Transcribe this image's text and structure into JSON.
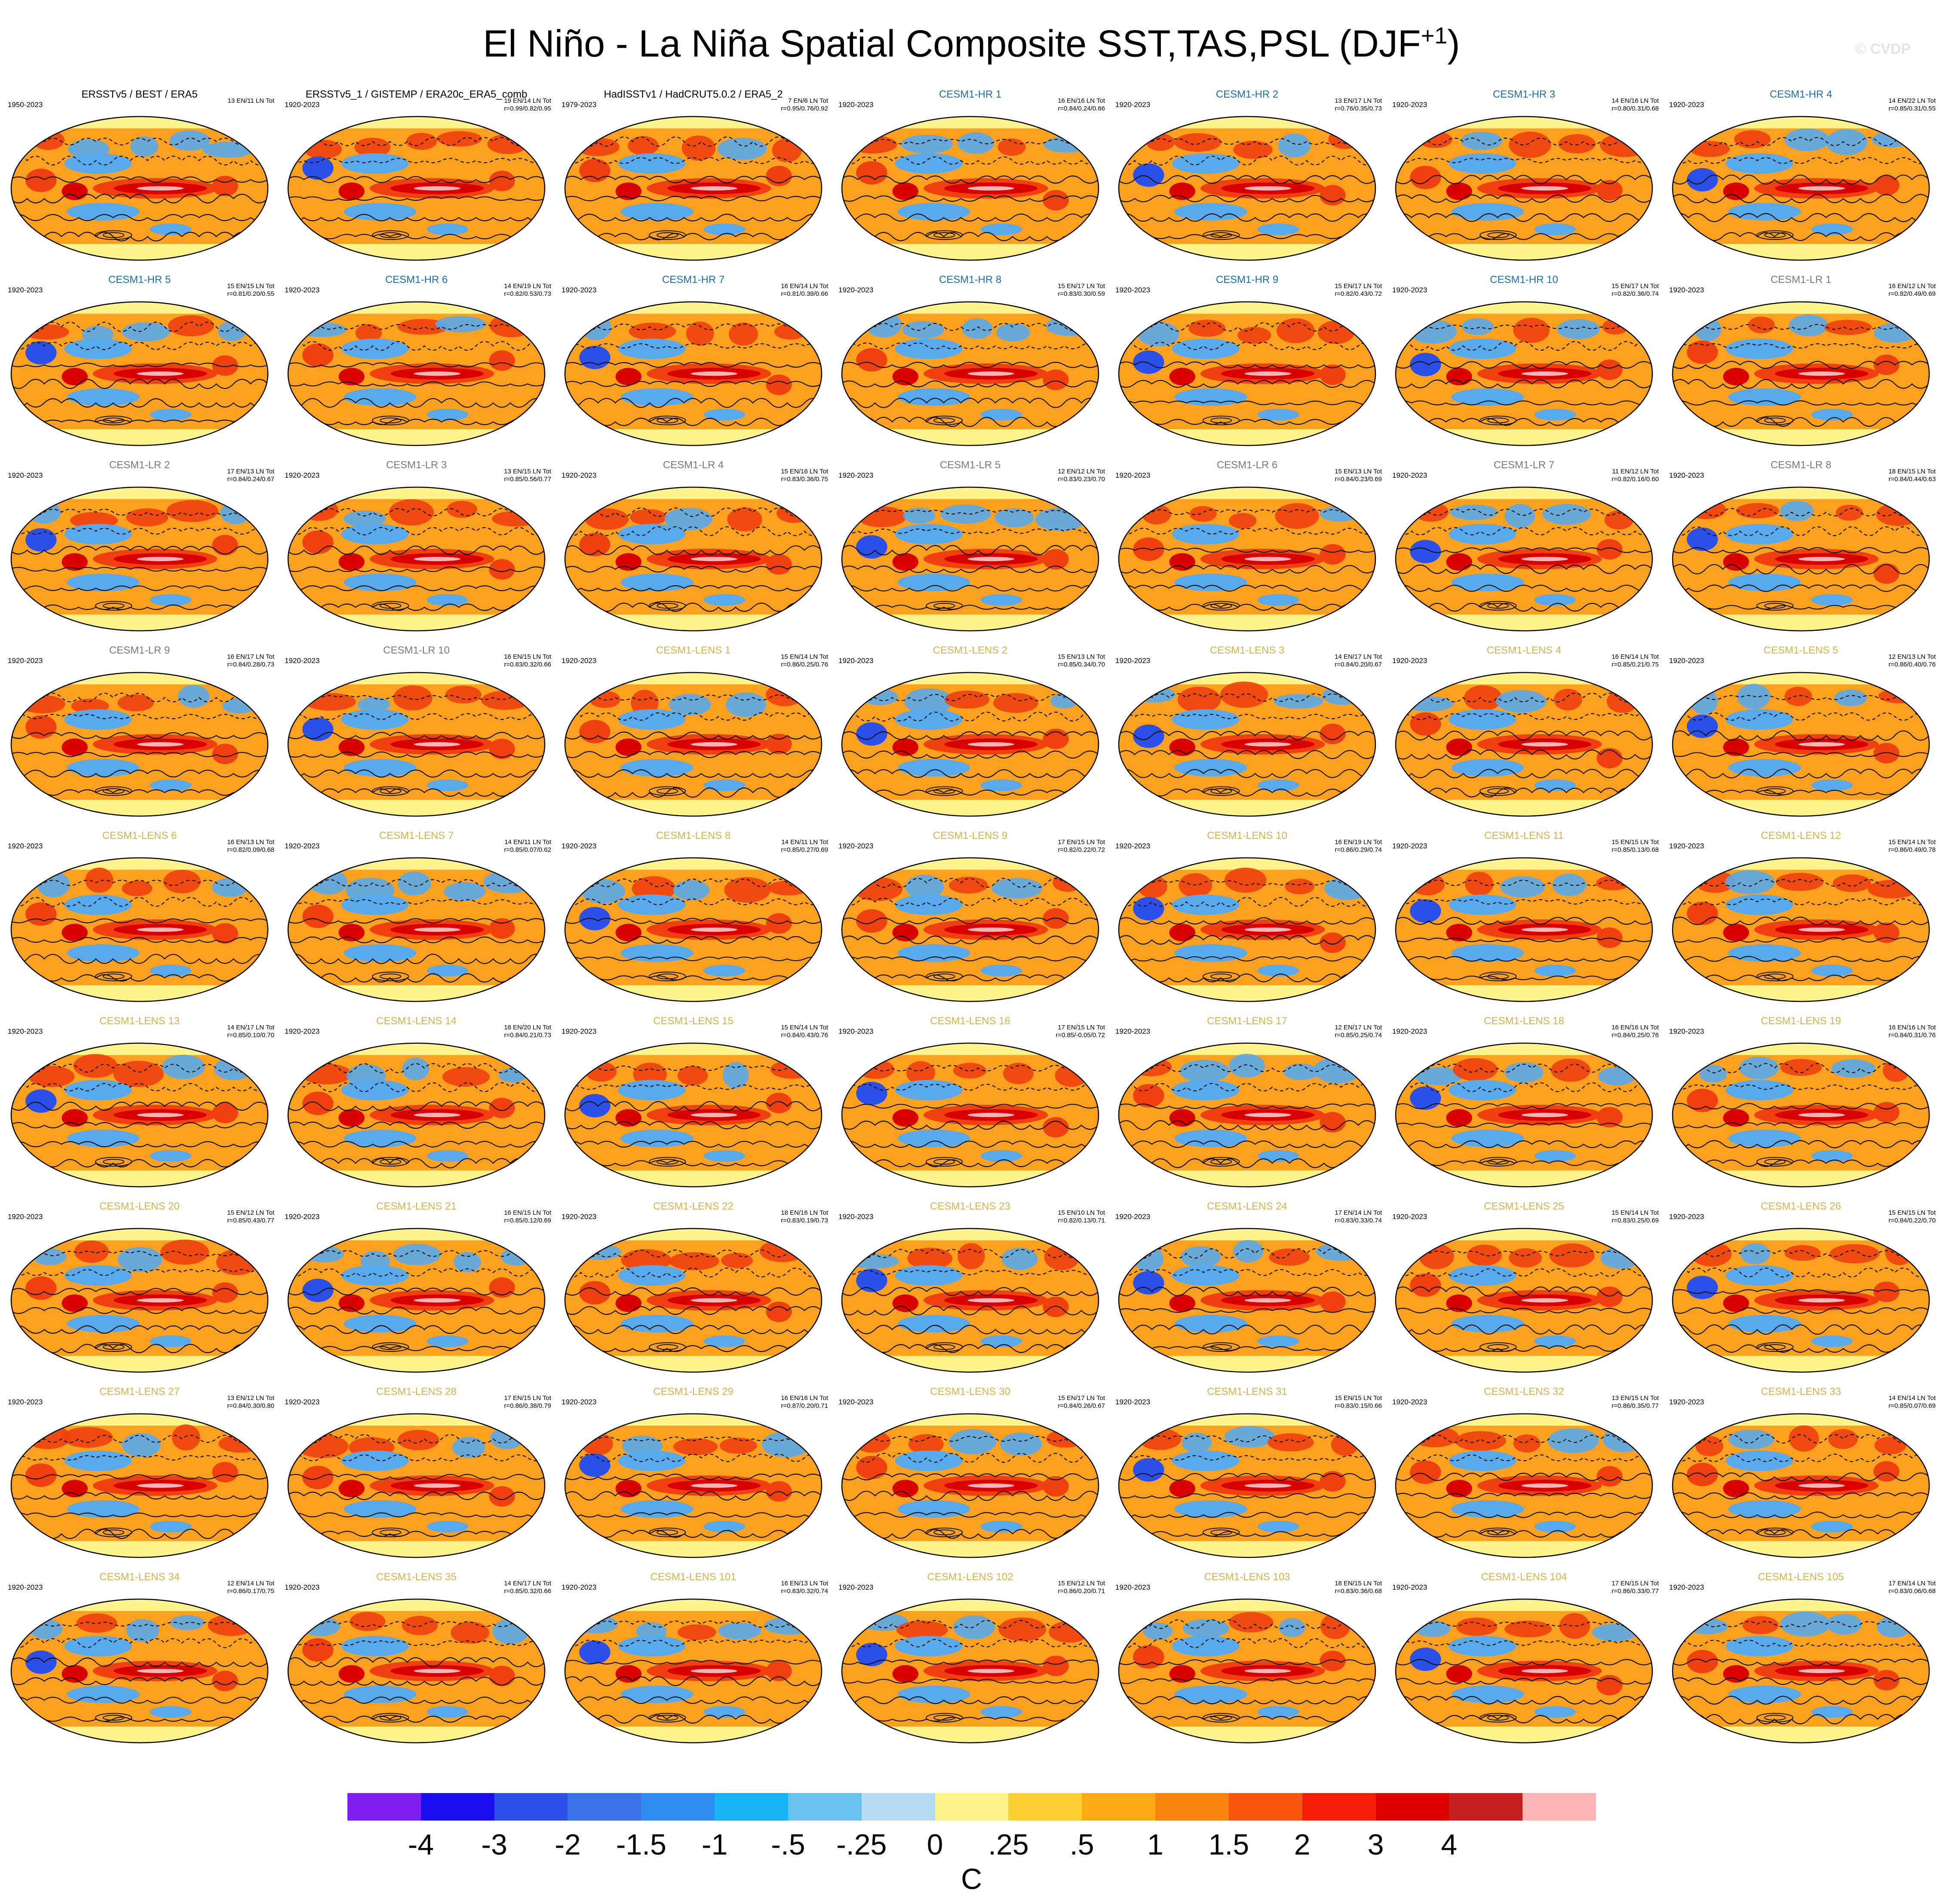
{
  "figure": {
    "title": "El Niño - La Niña Spatial Composite SST,TAS,PSL (DJF",
    "title_superscript": "+1",
    "title_close": ")",
    "watermark": "© CVDP"
  },
  "panels": [
    {
      "title": "ERSSTv5 / BEST / ERA5",
      "years": "1950-2023",
      "stat1": "13 EN/11 LN Tot",
      "stat2": "",
      "group": "obs"
    },
    {
      "title": "ERSSTv5_1 / GISTEMP / ERA20c_ERA5_comb",
      "years": "1920-2023",
      "stat1": "19 EN/14 LN Tot",
      "stat2": "r=0.99/0.82/0.95",
      "group": "obs"
    },
    {
      "title": "HadISSTv1 / HadCRUT5.0.2 / ERA5_2",
      "years": "1979-2023",
      "stat1": "7 EN/6 LN Tot",
      "stat2": "r=0.95/0.76/0.92",
      "group": "obs"
    },
    {
      "title": "CESM1-HR 1",
      "years": "1920-2023",
      "stat1": "16 EN/16 LN Tot",
      "stat2": "r=0.84/0.24/0.66",
      "group": "hr"
    },
    {
      "title": "CESM1-HR 2",
      "years": "1920-2023",
      "stat1": "13 EN/17 LN Tot",
      "stat2": "r=0.76/0.35/0.73",
      "group": "hr"
    },
    {
      "title": "CESM1-HR 3",
      "years": "1920-2023",
      "stat1": "14 EN/16 LN Tot",
      "stat2": "r=0.80/0.31/0.68",
      "group": "hr"
    },
    {
      "title": "CESM1-HR 4",
      "years": "1920-2023",
      "stat1": "14 EN/22 LN Tot",
      "stat2": "r=0.85/0.31/0.55",
      "group": "hr"
    },
    {
      "title": "CESM1-HR 5",
      "years": "1920-2023",
      "stat1": "15 EN/15 LN Tot",
      "stat2": "r=0.81/0.20/0.55",
      "group": "hr"
    },
    {
      "title": "CESM1-HR 6",
      "years": "1920-2023",
      "stat1": "14 EN/19 LN Tot",
      "stat2": "r=0.82/0.53/0.73",
      "group": "hr"
    },
    {
      "title": "CESM1-HR 7",
      "years": "1920-2023",
      "stat1": "16 EN/14 LN Tot",
      "stat2": "r=0.81/0.39/0.66",
      "group": "hr"
    },
    {
      "title": "CESM1-HR 8",
      "years": "1920-2023",
      "stat1": "15 EN/17 LN Tot",
      "stat2": "r=0.83/0.30/0.59",
      "group": "hr"
    },
    {
      "title": "CESM1-HR 9",
      "years": "1920-2023",
      "stat1": "15 EN/17 LN Tot",
      "stat2": "r=0.82/0.43/0.72",
      "group": "hr"
    },
    {
      "title": "CESM1-HR 10",
      "years": "1920-2023",
      "stat1": "15 EN/17 LN Tot",
      "stat2": "r=0.82/0.36/0.74",
      "group": "hr"
    },
    {
      "title": "CESM1-LR 1",
      "years": "1920-2023",
      "stat1": "16 EN/12 LN Tot",
      "stat2": "r=0.82/0.49/0.69",
      "group": "lr"
    },
    {
      "title": "CESM1-LR 2",
      "years": "1920-2023",
      "stat1": "17 EN/13 LN Tot",
      "stat2": "r=0.84/0.24/0.67",
      "group": "lr"
    },
    {
      "title": "CESM1-LR 3",
      "years": "1920-2023",
      "stat1": "13 EN/15 LN Tot",
      "stat2": "r=0.85/0.56/0.77",
      "group": "lr"
    },
    {
      "title": "CESM1-LR 4",
      "years": "1920-2023",
      "stat1": "15 EN/16 LN Tot",
      "stat2": "r=0.83/0.36/0.75",
      "group": "lr"
    },
    {
      "title": "CESM1-LR 5",
      "years": "1920-2023",
      "stat1": "12 EN/12 LN Tot",
      "stat2": "r=0.83/0.23/0.70",
      "group": "lr"
    },
    {
      "title": "CESM1-LR 6",
      "years": "1920-2023",
      "stat1": "15 EN/13 LN Tot",
      "stat2": "r=0.84/0.23/0.69",
      "group": "lr"
    },
    {
      "title": "CESM1-LR 7",
      "years": "1920-2023",
      "stat1": "11 EN/12 LN Tot",
      "stat2": "r=0.82/0.16/0.60",
      "group": "lr"
    },
    {
      "title": "CESM1-LR 8",
      "years": "1920-2023",
      "stat1": "18 EN/15 LN Tot",
      "stat2": "r=0.84/0.44/0.63",
      "group": "lr"
    },
    {
      "title": "CESM1-LR 9",
      "years": "1920-2023",
      "stat1": "16 EN/17 LN Tot",
      "stat2": "r=0.84/0.28/0.73",
      "group": "lr"
    },
    {
      "title": "CESM1-LR 10",
      "years": "1920-2023",
      "stat1": "16 EN/15 LN Tot",
      "stat2": "r=0.83/0.32/0.66",
      "group": "lr"
    },
    {
      "title": "CESM1-LENS 1",
      "years": "1920-2023",
      "stat1": "15 EN/14 LN Tot",
      "stat2": "r=0.86/0.25/0.76",
      "group": "lens"
    },
    {
      "title": "CESM1-LENS 2",
      "years": "1920-2023",
      "stat1": "15 EN/13 LN Tot",
      "stat2": "r=0.85/0.34/0.70",
      "group": "lens"
    },
    {
      "title": "CESM1-LENS 3",
      "years": "1920-2023",
      "stat1": "14 EN/17 LN Tot",
      "stat2": "r=0.84/0.20/0.67",
      "group": "lens"
    },
    {
      "title": "CESM1-LENS 4",
      "years": "1920-2023",
      "stat1": "16 EN/14 LN Tot",
      "stat2": "r=0.85/0.21/0.75",
      "group": "lens"
    },
    {
      "title": "CESM1-LENS 5",
      "years": "1920-2023",
      "stat1": "12 EN/13 LN Tot",
      "stat2": "r=0.86/0.40/0.76",
      "group": "lens"
    },
    {
      "title": "CESM1-LENS 6",
      "years": "1920-2023",
      "stat1": "16 EN/13 LN Tot",
      "stat2": "r=0.82/0.09/0.68",
      "group": "lens"
    },
    {
      "title": "CESM1-LENS 7",
      "years": "1920-2023",
      "stat1": "14 EN/11 LN Tot",
      "stat2": "r=0.85/0.07/0.62",
      "group": "lens"
    },
    {
      "title": "CESM1-LENS 8",
      "years": "1920-2023",
      "stat1": "14 EN/11 LN Tot",
      "stat2": "r=0.85/0.27/0.69",
      "group": "lens"
    },
    {
      "title": "CESM1-LENS 9",
      "years": "1920-2023",
      "stat1": "17 EN/15 LN Tot",
      "stat2": "r=0.82/0.22/0.72",
      "group": "lens"
    },
    {
      "title": "CESM1-LENS 10",
      "years": "1920-2023",
      "stat1": "16 EN/19 LN Tot",
      "stat2": "r=0.86/0.29/0.74",
      "group": "lens"
    },
    {
      "title": "CESM1-LENS 11",
      "years": "1920-2023",
      "stat1": "15 EN/15 LN Tot",
      "stat2": "r=0.85/0.13/0.68",
      "group": "lens"
    },
    {
      "title": "CESM1-LENS 12",
      "years": "1920-2023",
      "stat1": "15 EN/14 LN Tot",
      "stat2": "r=0.86/0.49/0.78",
      "group": "lens"
    },
    {
      "title": "CESM1-LENS 13",
      "years": "1920-2023",
      "stat1": "14 EN/17 LN Tot",
      "stat2": "r=0.85/0.10/0.70",
      "group": "lens"
    },
    {
      "title": "CESM1-LENS 14",
      "years": "1920-2023",
      "stat1": "18 EN/20 LN Tot",
      "stat2": "r=0.84/0.21/0.73",
      "group": "lens"
    },
    {
      "title": "CESM1-LENS 15",
      "years": "1920-2023",
      "stat1": "15 EN/14 LN Tot",
      "stat2": "r=0.84/0.43/0.76",
      "group": "lens"
    },
    {
      "title": "CESM1-LENS 16",
      "years": "1920-2023",
      "stat1": "17 EN/15 LN Tot",
      "stat2": "r=0.85/-0.05/0.72",
      "group": "lens"
    },
    {
      "title": "CESM1-LENS 17",
      "years": "1920-2023",
      "stat1": "12 EN/17 LN Tot",
      "stat2": "r=0.85/0.25/0.74",
      "group": "lens"
    },
    {
      "title": "CESM1-LENS 18",
      "years": "1920-2023",
      "stat1": "16 EN/16 LN Tot",
      "stat2": "r=0.84/0.25/0.76",
      "group": "lens"
    },
    {
      "title": "CESM1-LENS 19",
      "years": "1920-2023",
      "stat1": "16 EN/16 LN Tot",
      "stat2": "r=0.84/0.31/0.76",
      "group": "lens"
    },
    {
      "title": "CESM1-LENS 20",
      "years": "1920-2023",
      "stat1": "15 EN/12 LN Tot",
      "stat2": "r=0.85/0.43/0.77",
      "group": "lens"
    },
    {
      "title": "CESM1-LENS 21",
      "years": "1920-2023",
      "stat1": "16 EN/15 LN Tot",
      "stat2": "r=0.85/0.12/0.69",
      "group": "lens"
    },
    {
      "title": "CESM1-LENS 22",
      "years": "1920-2023",
      "stat1": "18 EN/16 LN Tot",
      "stat2": "r=0.83/0.19/0.73",
      "group": "lens"
    },
    {
      "title": "CESM1-LENS 23",
      "years": "1920-2023",
      "stat1": "15 EN/10 LN Tot",
      "stat2": "r=0.82/0.13/0.71",
      "group": "lens"
    },
    {
      "title": "CESM1-LENS 24",
      "years": "1920-2023",
      "stat1": "17 EN/14 LN Tot",
      "stat2": "r=0.83/0.33/0.74",
      "group": "lens"
    },
    {
      "title": "CESM1-LENS 25",
      "years": "1920-2023",
      "stat1": "15 EN/14 LN Tot",
      "stat2": "r=0.83/0.25/0.69",
      "group": "lens"
    },
    {
      "title": "CESM1-LENS 26",
      "years": "1920-2023",
      "stat1": "15 EN/15 LN Tot",
      "stat2": "r=0.84/0.22/0.70",
      "group": "lens"
    },
    {
      "title": "CESM1-LENS 27",
      "years": "1920-2023",
      "stat1": "13 EN/12 LN Tot",
      "stat2": "r=0.84/0.30/0.80",
      "group": "lens"
    },
    {
      "title": "CESM1-LENS 28",
      "years": "1920-2023",
      "stat1": "17 EN/15 LN Tot",
      "stat2": "r=0.86/0.38/0.79",
      "group": "lens"
    },
    {
      "title": "CESM1-LENS 29",
      "years": "1920-2023",
      "stat1": "16 EN/16 LN Tot",
      "stat2": "r=0.87/0.20/0.71",
      "group": "lens"
    },
    {
      "title": "CESM1-LENS 30",
      "years": "1920-2023",
      "stat1": "15 EN/17 LN Tot",
      "stat2": "r=0.84/0.26/0.67",
      "group": "lens"
    },
    {
      "title": "CESM1-LENS 31",
      "years": "1920-2023",
      "stat1": "15 EN/15 LN Tot",
      "stat2": "r=0.83/0.15/0.66",
      "group": "lens"
    },
    {
      "title": "CESM1-LENS 32",
      "years": "1920-2023",
      "stat1": "13 EN/15 LN Tot",
      "stat2": "r=0.86/0.35/0.77",
      "group": "lens"
    },
    {
      "title": "CESM1-LENS 33",
      "years": "1920-2023",
      "stat1": "14 EN/14 LN Tot",
      "stat2": "r=0.85/0.07/0.69",
      "group": "lens"
    },
    {
      "title": "CESM1-LENS 34",
      "years": "1920-2023",
      "stat1": "12 EN/14 LN Tot",
      "stat2": "r=0.86/0.17/0.75",
      "group": "lens"
    },
    {
      "title": "CESM1-LENS 35",
      "years": "1920-2023",
      "stat1": "14 EN/17 LN Tot",
      "stat2": "r=0.85/0.32/0.66",
      "group": "lens"
    },
    {
      "title": "CESM1-LENS 101",
      "years": "1920-2023",
      "stat1": "16 EN/13 LN Tot",
      "stat2": "r=0.83/0.32/0.74",
      "group": "lens"
    },
    {
      "title": "CESM1-LENS 102",
      "years": "1920-2023",
      "stat1": "15 EN/12 LN Tot",
      "stat2": "r=0.86/0.20/0.71",
      "group": "lens"
    },
    {
      "title": "CESM1-LENS 103",
      "years": "1920-2023",
      "stat1": "18 EN/15 LN Tot",
      "stat2": "r=0.83/0.36/0.68",
      "group": "lens"
    },
    {
      "title": "CESM1-LENS 104",
      "years": "1920-2023",
      "stat1": "17 EN/15 LN Tot",
      "stat2": "r=0.86/0.33/0.77",
      "group": "lens"
    },
    {
      "title": "CESM1-LENS 105",
      "years": "1920-2023",
      "stat1": "17 EN/14 LN Tot",
      "stat2": "r=0.83/0.06/0.68",
      "group": "lens"
    }
  ],
  "colorbar": {
    "colors": [
      "#7f1ff0",
      "#1b0ff2",
      "#2b50e8",
      "#3a72e8",
      "#2f8bf0",
      "#18b2f5",
      "#6cc0f0",
      "#b6dcf5",
      "#fff48c",
      "#fcd030",
      "#fcab14",
      "#fa8410",
      "#fa5511",
      "#f51c08",
      "#e00000",
      "#c81e1e",
      "#fcb4b4"
    ],
    "ticks": [
      "-4",
      "-3",
      "-2",
      "-1.5",
      "-1",
      "-.5",
      "-.25",
      "0",
      ".25",
      ".5",
      "1",
      "1.5",
      "2",
      "3",
      "4"
    ],
    "units": "C"
  },
  "map_style": {
    "background_color": "#fca020",
    "cold_color": "#58aaec",
    "deep_cold_color": "#2b50e8",
    "warm_color": "#f04010",
    "hot_color": "#d80000",
    "pale_color": "#fff48c",
    "contour_color": "#111111"
  }
}
